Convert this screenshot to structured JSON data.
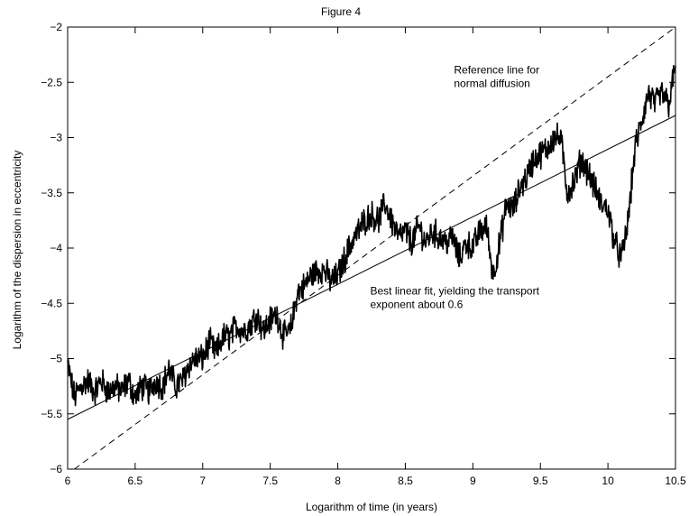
{
  "chart_data": {
    "type": "line",
    "title": "Figure 4",
    "xlabel": "Logarithm of time (in years)",
    "ylabel": "Logarithm of the dispersion in eccentricity",
    "xlim": [
      6,
      10.5
    ],
    "ylim": [
      -6,
      -2
    ],
    "xticks": [
      6,
      6.5,
      7,
      7.5,
      8,
      8.5,
      9,
      9.5,
      10,
      10.5
    ],
    "yticks": [
      -6,
      -5.5,
      -5,
      -4.5,
      -4,
      -3.5,
      -3,
      -2.5,
      -2
    ],
    "xtick_labels": [
      "6",
      "6.5",
      "7",
      "7.5",
      "8",
      "8.5",
      "9",
      "9.5",
      "10",
      "10.5"
    ],
    "ytick_labels": [
      "−6",
      "−5.5",
      "−5",
      "−4.5",
      "−4",
      "−3.5",
      "−3",
      "−2.5",
      "−2"
    ],
    "grid": false,
    "series": [
      {
        "style": "jagged-line",
        "x": [
          6.0,
          6.05,
          6.1,
          6.15,
          6.2,
          6.25,
          6.3,
          6.35,
          6.4,
          6.45,
          6.5,
          6.55,
          6.6,
          6.65,
          6.7,
          6.75,
          6.8,
          6.85,
          6.9,
          6.95,
          7.0,
          7.05,
          7.1,
          7.15,
          7.2,
          7.25,
          7.3,
          7.35,
          7.4,
          7.45,
          7.5,
          7.55,
          7.6,
          7.65,
          7.7,
          7.75,
          7.8,
          7.85,
          7.9,
          7.95,
          8.0,
          8.05,
          8.1,
          8.15,
          8.2,
          8.25,
          8.3,
          8.35,
          8.4,
          8.45,
          8.5,
          8.55,
          8.6,
          8.65,
          8.7,
          8.75,
          8.8,
          8.85,
          8.9,
          8.95,
          9.0,
          9.05,
          9.1,
          9.15,
          9.2,
          9.25,
          9.3,
          9.35,
          9.4,
          9.45,
          9.5,
          9.55,
          9.6,
          9.65,
          9.7,
          9.75,
          9.8,
          9.85,
          9.9,
          9.95,
          10.0,
          10.05,
          10.1,
          10.15,
          10.2,
          10.25,
          10.3,
          10.35,
          10.4,
          10.45,
          10.5
        ],
        "y": [
          -5.05,
          -5.35,
          -5.25,
          -5.2,
          -5.3,
          -5.2,
          -5.3,
          -5.25,
          -5.3,
          -5.2,
          -5.35,
          -5.25,
          -5.3,
          -5.2,
          -5.25,
          -5.1,
          -5.25,
          -5.2,
          -5.05,
          -5.0,
          -5.0,
          -4.85,
          -4.95,
          -4.8,
          -4.8,
          -4.7,
          -4.75,
          -4.7,
          -4.6,
          -4.75,
          -4.65,
          -4.6,
          -4.8,
          -4.75,
          -4.4,
          -4.35,
          -4.25,
          -4.2,
          -4.2,
          -4.3,
          -4.25,
          -4.1,
          -3.95,
          -3.85,
          -3.75,
          -3.7,
          -3.75,
          -3.6,
          -3.75,
          -3.9,
          -3.85,
          -3.95,
          -3.8,
          -3.95,
          -3.85,
          -3.9,
          -3.95,
          -3.9,
          -4.1,
          -3.95,
          -4.0,
          -3.85,
          -3.8,
          -4.25,
          -3.95,
          -3.6,
          -3.65,
          -3.45,
          -3.35,
          -3.2,
          -3.15,
          -3.1,
          -3.0,
          -3.0,
          -3.5,
          -3.4,
          -3.2,
          -3.3,
          -3.45,
          -3.6,
          -3.65,
          -3.95,
          -4.1,
          -3.75,
          -3.1,
          -2.85,
          -2.6,
          -2.7,
          -2.6,
          -2.7,
          -2.35
        ]
      },
      {
        "style": "dashed",
        "x": [
          6.05,
          10.5
        ],
        "y": [
          -6.0,
          -2.0
        ]
      },
      {
        "style": "solid",
        "x": [
          6.0,
          10.5
        ],
        "y": [
          -5.55,
          -2.8
        ]
      }
    ],
    "annotations": [
      {
        "lines": [
          "Reference line for",
          "normal diffusion"
        ],
        "x": 8.86,
        "y": -2.42
      },
      {
        "lines": [
          "Best linear fit, yielding the transport",
          "exponent about 0.6"
        ],
        "x": 8.24,
        "y": -4.42
      }
    ]
  }
}
